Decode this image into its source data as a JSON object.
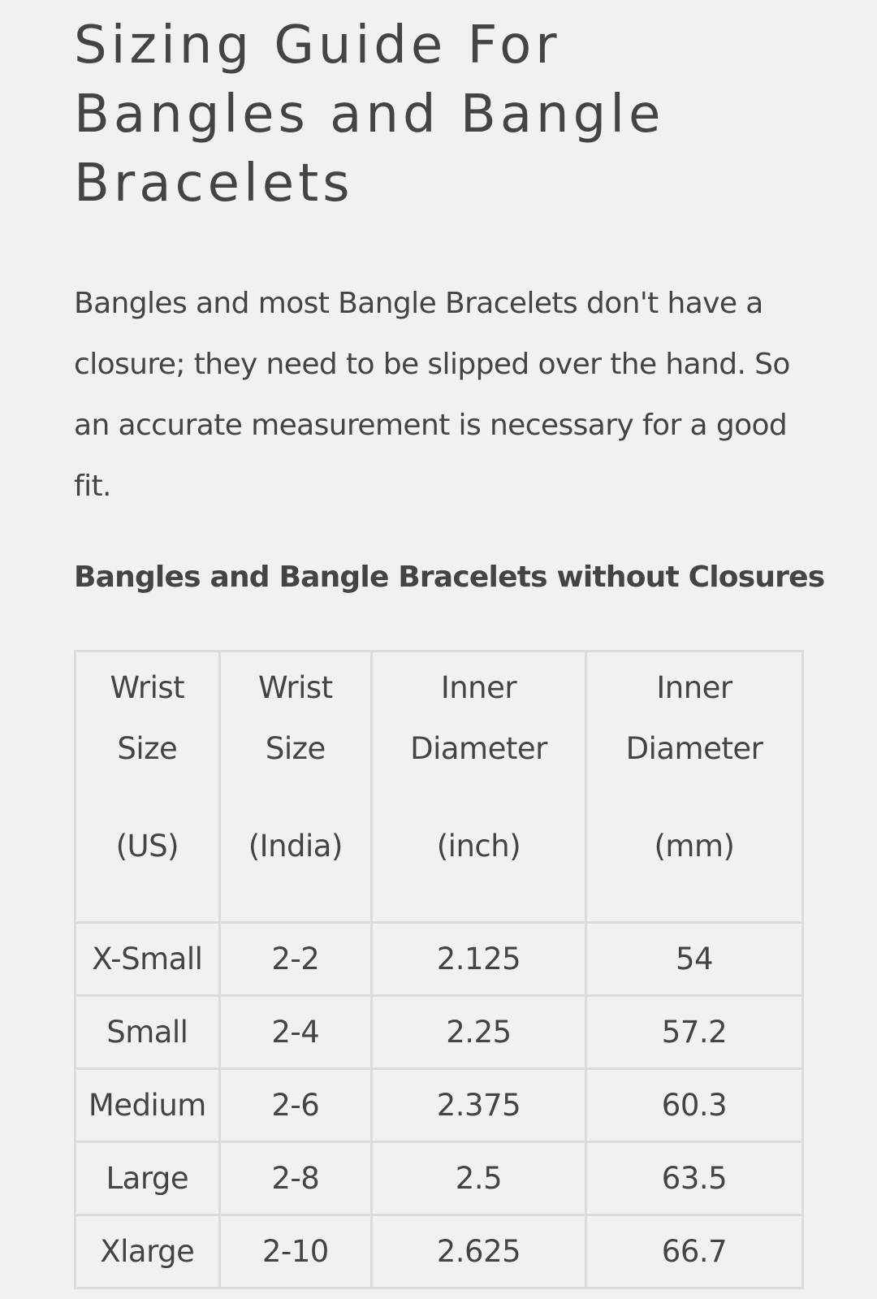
{
  "title": "Sizing Guide For Bangles and Bangle Bracelets",
  "intro": "Bangles and most Bangle Bracelets don't have a closure; they need to be slipped over the hand. So an accurate measurement is necessary for a good fit.",
  "table_title": "Bangles and Bangle Bracelets without Closures",
  "table": {
    "headers": [
      {
        "line1": "Wrist",
        "line2": "Size",
        "unit": "(US)"
      },
      {
        "line1": "Wrist",
        "line2": "Size",
        "unit": "(India)"
      },
      {
        "line1": "Inner",
        "line2": "Diameter",
        "unit": "(inch)"
      },
      {
        "line1": "Inner",
        "line2": "Diameter",
        "unit": "(mm)"
      }
    ],
    "rows": [
      [
        "X-Small",
        "2-2",
        "2.125",
        "54"
      ],
      [
        "Small",
        "2-4",
        "2.25",
        "57.2"
      ],
      [
        "Medium",
        "2-6",
        "2.375",
        "60.3"
      ],
      [
        "Large",
        "2-8",
        "2.5",
        "63.5"
      ],
      [
        "Xlarge",
        "2-10",
        "2.625",
        "66.7"
      ]
    ]
  }
}
